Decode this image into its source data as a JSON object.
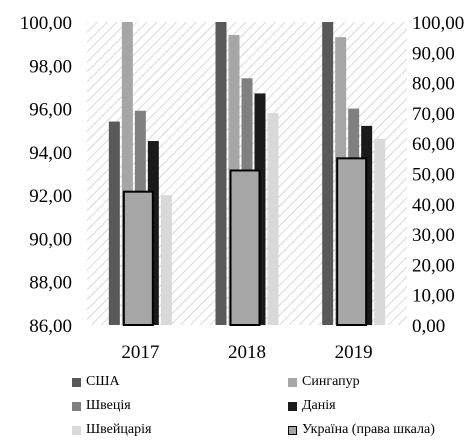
{
  "chart_data": {
    "type": "bar",
    "categories": [
      "2017",
      "2018",
      "2019"
    ],
    "left_axis": {
      "min": 86,
      "max": 100,
      "step": 2,
      "tick_labels": [
        "100,00",
        "98,00",
        "96,00",
        "94,00",
        "92,00",
        "90,00",
        "88,00",
        "86,00"
      ]
    },
    "right_axis": {
      "min": 0,
      "max": 100,
      "step": 10,
      "tick_labels": [
        "100,00",
        "90,00",
        "80,00",
        "70,00",
        "60,00",
        "50,00",
        "40,00",
        "30,00",
        "20,00",
        "10,00",
        "0,00"
      ]
    },
    "series": [
      {
        "name": "США",
        "axis": "left",
        "color": "#595959",
        "values": [
          95.4,
          100.0,
          100.0
        ]
      },
      {
        "name": "Сингапур",
        "axis": "left",
        "color": "#a6a6a6",
        "values": [
          100.0,
          99.4,
          99.3
        ]
      },
      {
        "name": "Швеція",
        "axis": "left",
        "color": "#808080",
        "values": [
          95.9,
          97.4,
          96.0
        ]
      },
      {
        "name": "Данія",
        "axis": "left",
        "color": "#1a1a1a",
        "values": [
          94.5,
          96.7,
          95.2
        ]
      },
      {
        "name": "Швейцарія",
        "axis": "left",
        "color": "#d9d9d9",
        "values": [
          92.0,
          95.8,
          94.6
        ]
      },
      {
        "name": "Україна (права шкала)",
        "axis": "right",
        "color": "#a6a6a6",
        "outline": "#000000",
        "values": [
          44.0,
          51.0,
          55.0
        ]
      }
    ],
    "grid": false,
    "plot_background": "diagonal-hatch",
    "legend_position": "bottom"
  }
}
